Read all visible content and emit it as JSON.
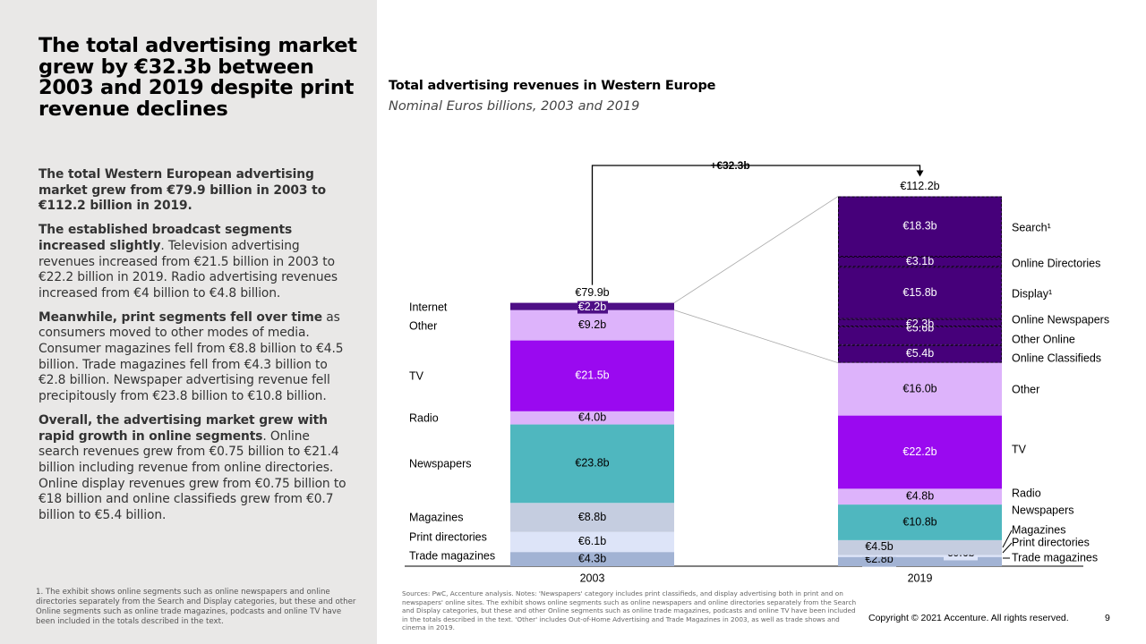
{
  "left_panel": {
    "headline": "The total advertising market grew by €32.3b between 2003 and 2019 despite print revenue declines",
    "paragraphs": [
      {
        "bold": "The total Western European advertising market grew from €79.9 billion in 2003 to €112.2 billion in 2019.",
        "text": ""
      },
      {
        "bold": "The established broadcast segments increased slightly",
        "text": ". Television advertising revenues increased from €21.5 billion in 2003 to €22.2 billion in 2019. Radio advertising revenues increased from €4 billion to €4.8 billion."
      },
      {
        "bold": "Meanwhile, print segments fell over time",
        "text": " as consumers moved to other modes of media. Consumer magazines fell from €8.8 billion to €4.5 billion. Trade magazines fell from €4.3 billion to €2.8 billion. Newspaper advertising revenue fell precipitously from €23.8 billion to €10.8 billion."
      },
      {
        "bold": "Overall, the advertising market grew with rapid growth in online segments",
        "text": ". Online search revenues grew from €0.75 billion to €21.4 billion including revenue from online directories. Online display revenues grew from €0.75 billion to €18 billion and online classifieds grew from €0.7 billion to €5.4 billion."
      }
    ],
    "footnote": "1. The exhibit shows online segments such as online newspapers and online directories separately from the Search and Display categories, but these and other Online segments such as online trade magazines, podcasts and online TV have been included in the totals described in the text."
  },
  "chart_data": {
    "type": "bar",
    "stacked": true,
    "title": "Total advertising revenues in Western Europe",
    "subtitle": "Nominal Euros billions, 2003 and 2019",
    "categories": [
      "2003",
      "2019"
    ],
    "unit": "€ billions",
    "growth_label": "+€32.3b",
    "colors": {
      "Trade magazines": "#a2b3d4",
      "Print directories": "#dde4f8",
      "Magazines": "#c5cde0",
      "Newspapers": "#4fb7bf",
      "Radio": "#ddb3fb",
      "TV": "#9a09f0",
      "Other": "#ddb3fb",
      "Internet": "#4e0f86",
      "Online": "#46007a"
    },
    "bars": [
      {
        "category": "2003",
        "total": 79.9,
        "total_label": "€79.9b",
        "segments": [
          {
            "name": "Trade magazines",
            "value": 4.3,
            "label": "€4.3b",
            "legend": "Trade magazines"
          },
          {
            "name": "Print directories",
            "value": 6.1,
            "label": "€6.1b",
            "legend": "Print directories"
          },
          {
            "name": "Magazines",
            "value": 8.8,
            "label": "€8.8b",
            "legend": "Magazines"
          },
          {
            "name": "Newspapers",
            "value": 23.8,
            "label": "€23.8b",
            "legend": "Newspapers"
          },
          {
            "name": "Radio",
            "value": 4.0,
            "label": "€4.0b",
            "legend": "Radio"
          },
          {
            "name": "TV",
            "value": 21.5,
            "label": "€21.5b",
            "legend": "TV"
          },
          {
            "name": "Other",
            "value": 9.2,
            "label": "€9.2b",
            "legend": "Other"
          },
          {
            "name": "Internet",
            "value": 2.2,
            "label": "€2.2b",
            "legend": "Internet"
          }
        ]
      },
      {
        "category": "2019",
        "total": 112.2,
        "total_label": "€112.2b",
        "segments": [
          {
            "name": "Trade magazines",
            "value": 2.8,
            "label": "€2.8b",
            "legend": "Trade magazines"
          },
          {
            "name": "Print directories",
            "value": 0.6,
            "label": "€0.6b",
            "legend": "Print directories"
          },
          {
            "name": "Magazines",
            "value": 4.5,
            "label": "€4.5b",
            "legend": "Magazines"
          },
          {
            "name": "Newspapers",
            "value": 10.8,
            "label": "€10.8b",
            "legend": "Newspapers"
          },
          {
            "name": "Radio",
            "value": 4.8,
            "label": "€4.8b",
            "legend": "Radio"
          },
          {
            "name": "TV",
            "value": 22.2,
            "label": "€22.2b",
            "legend": "TV"
          },
          {
            "name": "Other",
            "value": 16.0,
            "label": "€16.0b",
            "legend": "Other"
          },
          {
            "name": "Online Classifieds",
            "value": 5.4,
            "label": "€5.4b",
            "legend": "Online Classifieds"
          },
          {
            "name": "Online Other",
            "value": 5.6,
            "label": "€5.6b",
            "legend": "Other Online"
          },
          {
            "name": "Online Newspapers",
            "value": 2.3,
            "label": "€2.3b",
            "legend": "Online Newspapers"
          },
          {
            "name": "Display",
            "value": 15.8,
            "label": "€15.8b",
            "legend": "Display¹"
          },
          {
            "name": "Online Directories",
            "value": 3.1,
            "label": "€3.1b",
            "legend": "Online Directories"
          },
          {
            "name": "Search",
            "value": 18.3,
            "label": "€18.3b",
            "legend": "Search¹"
          }
        ]
      }
    ]
  },
  "sources": "Sources: PwC, Accenture analysis. Notes: 'Newspapers' category includes print classifieds, and display advertising both in print and on newspapers' online sites. The exhibit shows online segments such as online newspapers and online directories separately from the Search and Display categories, but these and other Online segments such as online trade magazines, podcasts and online TV have been included in the totals described in the text. 'Other' includes Out-of-Home Advertising and Trade Magazines in 2003, as well as trade shows and cinema in 2019.",
  "footer": {
    "copyright": "Copyright © 2021 Accenture. All rights reserved.",
    "page_number": "9"
  }
}
